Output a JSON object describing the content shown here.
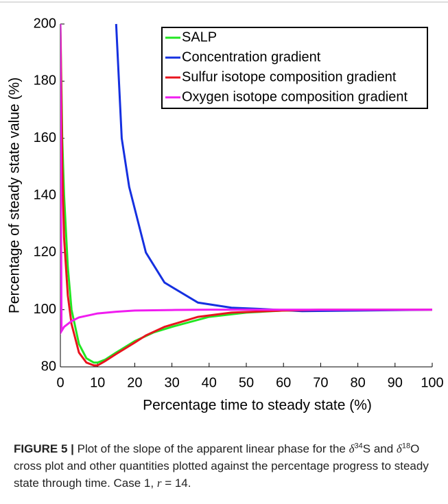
{
  "chart_data": {
    "type": "line",
    "xlabel": "Percentage time to steady state (%)",
    "ylabel": "Percentage of steady state value (%)",
    "xlim": [
      0,
      100
    ],
    "xticks": [
      0,
      10,
      20,
      30,
      40,
      50,
      60,
      70,
      80,
      90,
      100
    ],
    "ylim": [
      80,
      200
    ],
    "yticks": [
      80,
      100,
      120,
      140,
      160,
      180,
      200
    ],
    "legend": "upper right",
    "series": [
      {
        "name": "SALP",
        "color": "#22e622",
        "x": [
          0,
          0.5,
          1,
          2,
          3,
          5,
          7,
          9,
          10,
          12,
          15,
          20,
          25,
          30,
          40,
          50,
          60,
          70,
          80,
          90,
          100
        ],
        "values": [
          200,
          160,
          140,
          115,
          100,
          88,
          83,
          81.5,
          81.5,
          82.5,
          85,
          89,
          92,
          94,
          97.5,
          99,
          99.7,
          100,
          100,
          100,
          100
        ]
      },
      {
        "name": "Concentration gradient",
        "color": "#1530e0",
        "x": [
          15,
          16.5,
          18.5,
          23,
          28,
          37,
          46,
          55,
          65,
          80,
          100
        ],
        "values": [
          200,
          160,
          143,
          120,
          109.5,
          102.5,
          100.7,
          100.2,
          99.5,
          99.7,
          100
        ]
      },
      {
        "name": "Sulfur isotope composition gradient",
        "color": "#e8141e",
        "x": [
          0,
          0.5,
          1,
          2,
          3,
          5,
          7,
          9,
          10,
          12,
          15,
          20,
          23,
          28,
          37,
          46,
          60,
          70,
          80,
          100
        ],
        "values": [
          200,
          150,
          125,
          105,
          95,
          85,
          81.5,
          80.5,
          80.5,
          82,
          84.5,
          88.5,
          91,
          94,
          97.5,
          99,
          99.7,
          100,
          100,
          100
        ]
      },
      {
        "name": "Oxygen isotope composition gradient",
        "color": "#f01cf0",
        "x": [
          0,
          0.3,
          1,
          3,
          5,
          10,
          15,
          20,
          30,
          40,
          100
        ],
        "values": [
          200,
          92.5,
          94,
          96,
          97.3,
          98.7,
          99.3,
          99.7,
          99.9,
          100,
          100
        ]
      }
    ]
  },
  "caption": [
    {
      "text": "FIGURE 5 |",
      "style": "bold"
    },
    {
      "text": " Plot of the slope of the apparent linear phase for the "
    },
    {
      "text": "δ",
      "style": "italic"
    },
    {
      "text": "34",
      "style": "sup"
    },
    {
      "text": "S and "
    },
    {
      "text": "δ",
      "style": "italic"
    },
    {
      "text": "18",
      "style": "sup"
    },
    {
      "text": "O cross plot and other quantities plotted against the percentage progress to steady state through time. Case 1, "
    },
    {
      "text": "r",
      "style": "italic"
    },
    {
      "text": " = 14."
    }
  ]
}
